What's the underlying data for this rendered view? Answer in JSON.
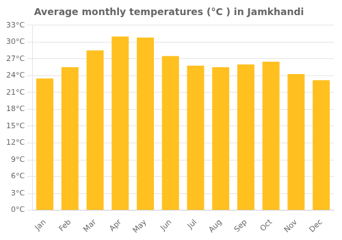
{
  "chart_data": {
    "type": "bar",
    "title": "Average monthly temperatures (°C ) in Jamkhandi",
    "categories": [
      "Jan",
      "Feb",
      "Mar",
      "Apr",
      "May",
      "Jun",
      "Jul",
      "Aug",
      "Sep",
      "Oct",
      "Nov",
      "Dec"
    ],
    "values": [
      23.5,
      25.5,
      28.5,
      31.0,
      30.8,
      27.5,
      25.8,
      25.5,
      26.0,
      26.5,
      24.3,
      23.2
    ],
    "color": "#FFC020",
    "ylim": [
      0,
      33
    ],
    "yticks": [
      {
        "value": 0,
        "label": "0°C"
      },
      {
        "value": 3,
        "label": "3°C"
      },
      {
        "value": 6,
        "label": "6°C"
      },
      {
        "value": 9,
        "label": "9°C"
      },
      {
        "value": 12,
        "label": "12°C"
      },
      {
        "value": 15,
        "label": "15°C"
      },
      {
        "value": 18,
        "label": "18°C"
      },
      {
        "value": 21,
        "label": "21°C"
      },
      {
        "value": 24,
        "label": "24°C"
      },
      {
        "value": 27,
        "label": "27°C"
      },
      {
        "value": 30,
        "label": "30°C"
      },
      {
        "value": 33,
        "label": "33°C"
      }
    ],
    "grid": true
  }
}
